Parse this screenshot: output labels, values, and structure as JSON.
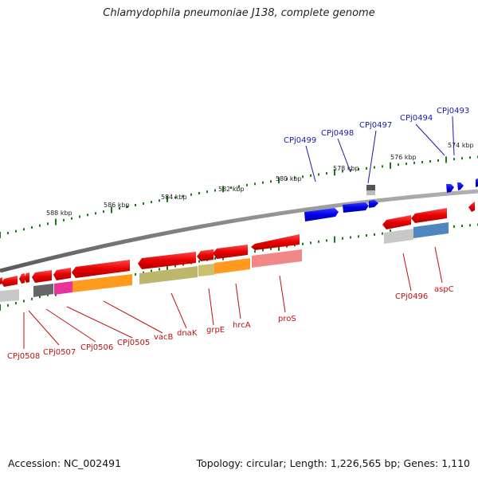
{
  "title": "Chlamydophila pneumoniae J138, complete genome",
  "accession": "Accession: NC_002491",
  "summary": "Topology: circular; Length: 1,226,565 bp; Genes: 1,110",
  "tick_labels": [
    "588 kbp",
    "586 kbp",
    "584 kbp",
    "582 kbp",
    "580 kbp",
    "578 kbp",
    "576 kbp",
    "574 kbp"
  ],
  "labels_top": [
    "CPj0499",
    "CPj0498",
    "CPj0497",
    "CPj0494",
    "CPj0493"
  ],
  "labels_bottom": [
    "CPj0508",
    "CPj0507",
    "CPj0506",
    "CPj0505",
    "vacB",
    "dnaK",
    "grpE",
    "hrcA",
    "proS",
    "CPj0496",
    "aspC"
  ],
  "colors": {
    "backbone": "#7f7f7f",
    "forward_gene": "#0000e6",
    "reverse_gene": "#e60000",
    "tick": "#1a7a1a",
    "label_blue": "#1a1aa8",
    "label_red": "#c01010"
  }
}
